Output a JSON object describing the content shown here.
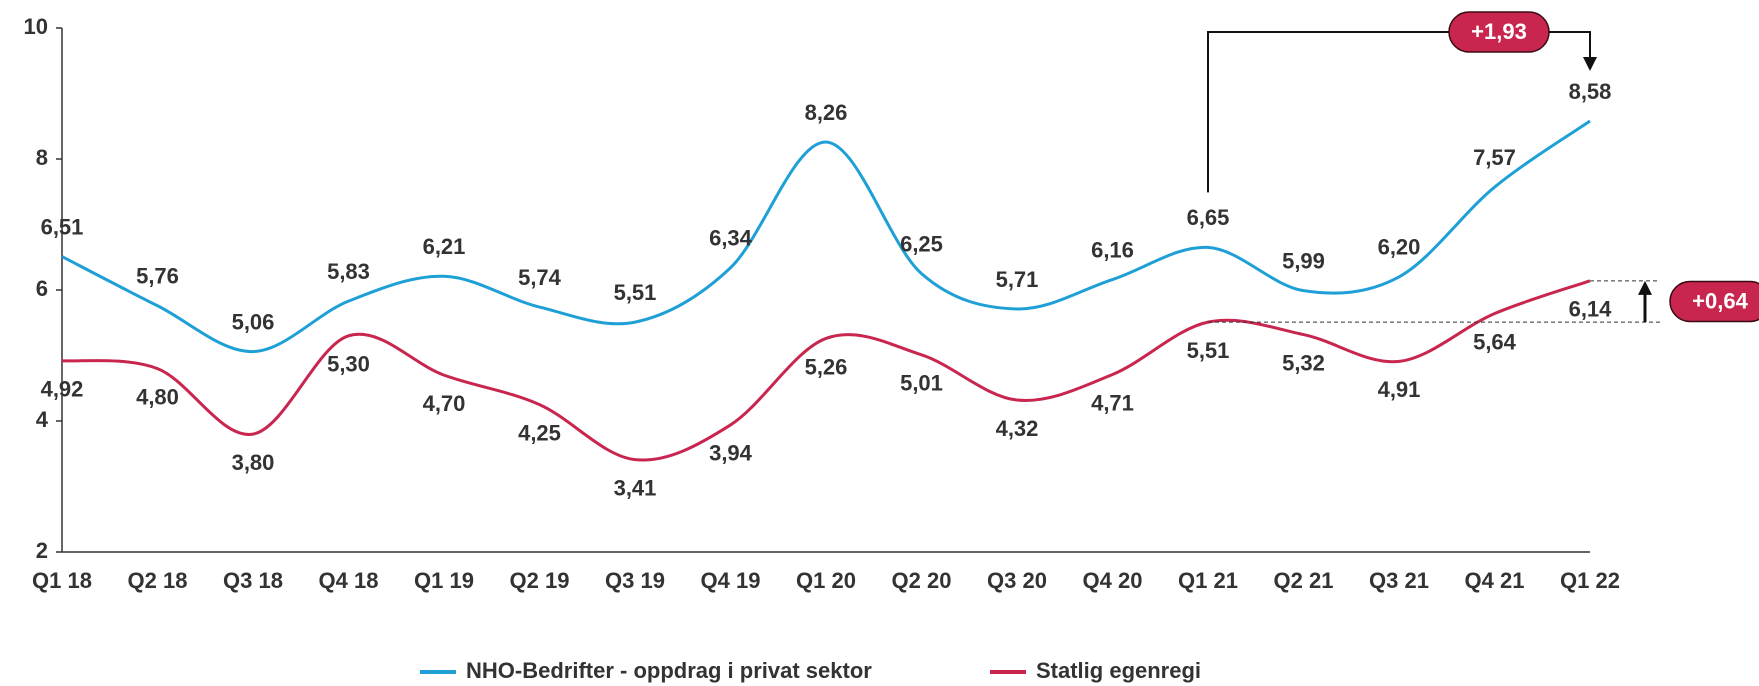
{
  "chart_data": {
    "type": "line",
    "categories": [
      "Q1 18",
      "Q2 18",
      "Q3 18",
      "Q4 18",
      "Q1 19",
      "Q2 19",
      "Q3 19",
      "Q4 19",
      "Q1 20",
      "Q2 20",
      "Q3 20",
      "Q4 20",
      "Q1 21",
      "Q2 21",
      "Q3 21",
      "Q4 21",
      "Q1 22"
    ],
    "series": [
      {
        "name": "NHO-Bedrifter - oppdrag i privat sektor",
        "color": "#1ea0d7",
        "values": [
          6.51,
          5.76,
          5.06,
          5.83,
          6.21,
          5.74,
          5.51,
          6.34,
          8.26,
          6.25,
          5.71,
          6.16,
          6.65,
          5.99,
          6.2,
          7.57,
          8.58
        ],
        "value_labels": [
          "6,51",
          "5,76",
          "5,06",
          "5,83",
          "6,21",
          "5,74",
          "5,51",
          "6,34",
          "8,26",
          "6,25",
          "5,71",
          "6,16",
          "6,65",
          "5,99",
          "6,20",
          "7,57",
          "8,58"
        ]
      },
      {
        "name": "Statlig egenregi",
        "color": "#c8264f",
        "values": [
          4.92,
          4.8,
          3.8,
          5.3,
          4.7,
          4.25,
          3.41,
          3.94,
          5.26,
          5.01,
          4.32,
          4.71,
          5.51,
          5.32,
          4.91,
          5.64,
          6.14
        ],
        "value_labels": [
          "4,92",
          "4,80",
          "3,80",
          "5,30",
          "4,70",
          "4,25",
          "3,41",
          "3,94",
          "5,26",
          "5,01",
          "4,32",
          "4,71",
          "5,51",
          "5,32",
          "4,91",
          "5,64",
          "6,14"
        ]
      }
    ],
    "ylim": [
      2,
      10
    ],
    "yticks": [
      2,
      4,
      6,
      8,
      10
    ],
    "annotations": [
      "+1,93",
      "+0,64"
    ],
    "legend": "bottom"
  }
}
